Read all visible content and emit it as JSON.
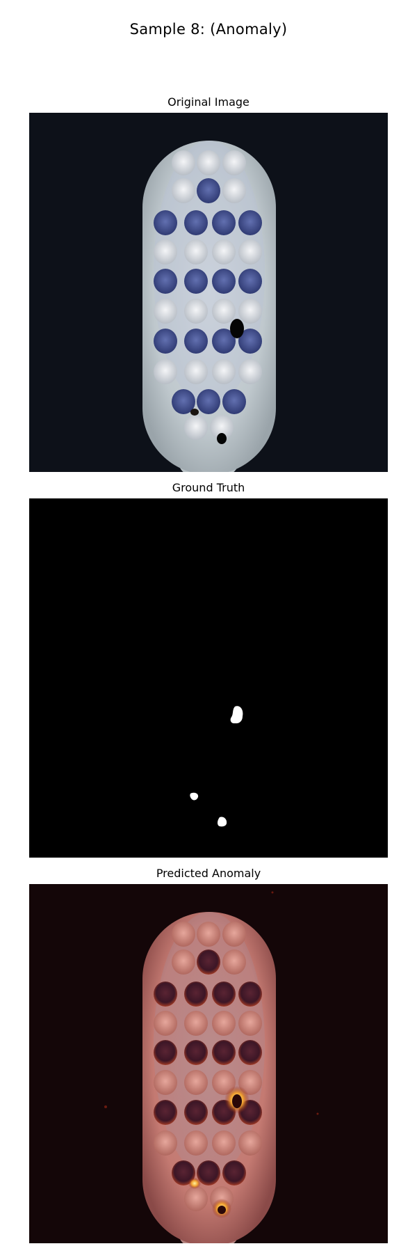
{
  "figure": {
    "title": "Sample 8: (Anomaly)"
  },
  "panels": [
    {
      "title": "Original Image",
      "content": "toothbrush-photo"
    },
    {
      "title": "Ground Truth",
      "content": "binary-anomaly-mask"
    },
    {
      "title": "Predicted Anomaly",
      "content": "anomaly-heatmap-overlay"
    }
  ],
  "colors": {
    "background_dark": "#0d1119",
    "brush_head": "#c9d0d4",
    "bristle_blue": "#3e4b8a",
    "bristle_white": "#e4e7ea",
    "mask_background": "#000000",
    "mask_foreground": "#ffffff",
    "heatmap_background": "#140608",
    "heatmap_head": "#c87a73",
    "heatmap_hotspot": "#f0a030"
  }
}
